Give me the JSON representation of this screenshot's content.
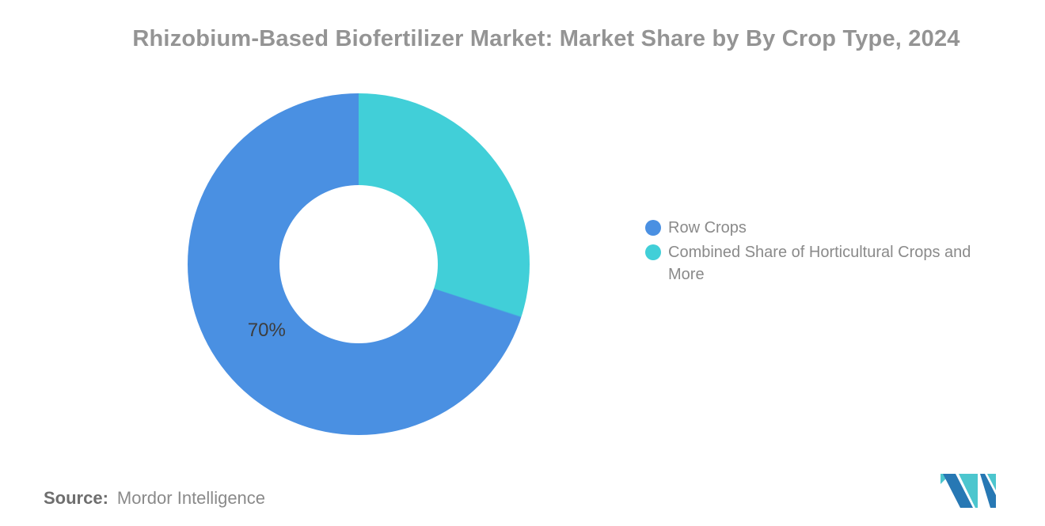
{
  "title": "Rhizobium-Based Biofertilizer Market: Market Share by By Crop Type, 2024",
  "chart_data": {
    "type": "pie",
    "donut": true,
    "title": "Rhizobium-Based Biofertilizer Market: Market Share by By Crop Type, 2024",
    "series": [
      {
        "name": "Row Crops",
        "value": 70,
        "color": "#4a90e2",
        "data_label": "70%"
      },
      {
        "name": "Combined Share of Horticultural Crops and More",
        "value": 30,
        "color": "#41cfd8",
        "data_label": ""
      }
    ],
    "start_angle_deg": 0,
    "direction": "counterclockwise",
    "inner_radius_ratio": 0.463,
    "legend_position": "right",
    "data_label_color": "#3d3d3d",
    "background": "#ffffff"
  },
  "footer": {
    "source_label": "Source:",
    "source_value": "Mordor Intelligence"
  },
  "logo": {
    "name": "mordor-intelligence-logo",
    "blue": "#2778b4",
    "teal": "#4cc6ce"
  }
}
